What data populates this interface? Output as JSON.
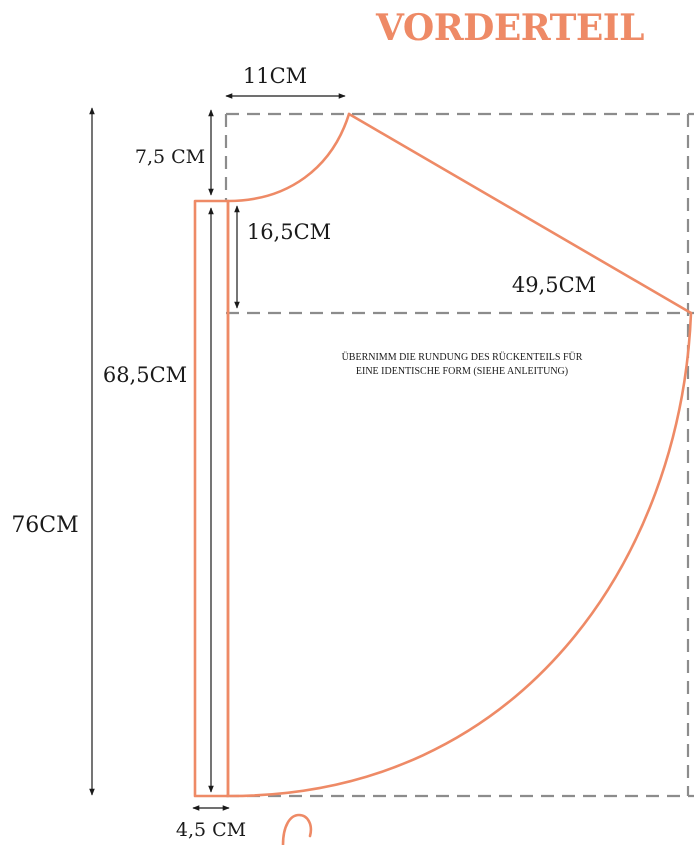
{
  "title": "VORDERTEIL",
  "colors": {
    "pattern_line": "#ee8a66",
    "guide_line": "#8c8c8c",
    "dimension_line": "#1a1a1a",
    "title": "#ee8a66"
  },
  "dimensions": {
    "neck_width": "11CM",
    "neck_depth": "7,5 CM",
    "shoulder_to_chest": "16,5CM",
    "half_width": "49,5CM",
    "front_length": "68,5CM",
    "total_length": "76CM",
    "placket_width": "4,5 CM"
  },
  "note": {
    "line1": "ÜBERNIMM DIE RUNDUNG DES RÜCKENTEILS FÜR",
    "line2": "EINE IDENTISCHE FORM (SIEHE ANLEITUNG)"
  }
}
